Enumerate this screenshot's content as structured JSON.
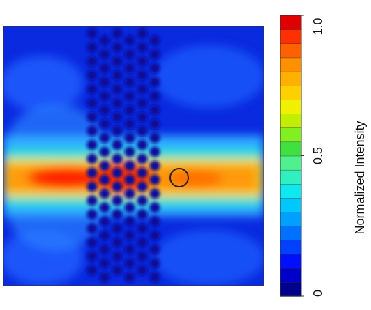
{
  "colorbar": {
    "label": "Normalized Intensity",
    "lim": [
      0,
      1
    ],
    "ticks": [
      {
        "value": 0,
        "label": "0"
      },
      {
        "value": 0.5,
        "label": "0.5"
      },
      {
        "value": 1,
        "label": "1.0"
      }
    ],
    "colors": [
      "#00008f",
      "#0000c8",
      "#0010ff",
      "#0040ff",
      "#0070ff",
      "#00a0ff",
      "#00c8ff",
      "#10e8f0",
      "#30f0c0",
      "#50f090",
      "#40e040",
      "#80f020",
      "#c0f000",
      "#f0f000",
      "#ffd000",
      "#ffb000",
      "#ff9000",
      "#ff6000",
      "#ff3000",
      "#e00000"
    ]
  }
}
